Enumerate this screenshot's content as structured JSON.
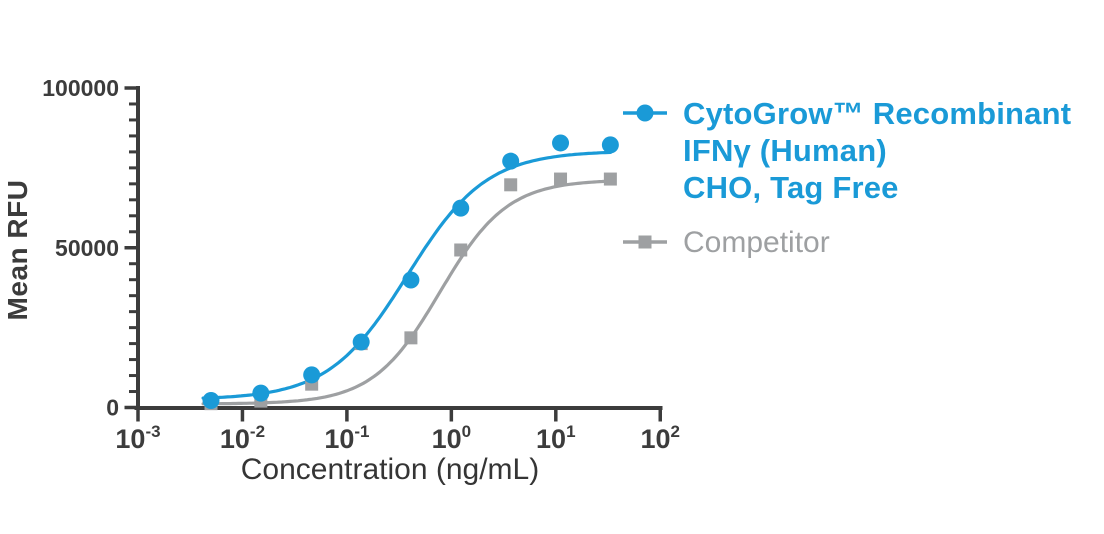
{
  "figure": {
    "background": "#FFFFFF"
  },
  "chart_data": {
    "type": "line",
    "title": "",
    "xlabel": "Concentration (ng/mL)",
    "ylabel": "Mean RFU",
    "x_scale": "log10",
    "x_tick_base": "10",
    "x_tick_exponents": [
      -3,
      -2,
      -1,
      0,
      1,
      2
    ],
    "y_range": [
      0,
      100000
    ],
    "y_major_ticks": [
      100000,
      50000,
      0
    ],
    "y_minor_step": 5000,
    "grid": "off",
    "legend_position": "right",
    "axis_color": "#3C3C3C",
    "concentrations_ng_ml": [
      0.005,
      0.015,
      0.046,
      0.137,
      0.41,
      1.23,
      3.7,
      11.1,
      33.3
    ],
    "series": [
      {
        "name": "cytogrow",
        "label_lines": [
          "CytoGrow™ Recombinant",
          "IFNγ (Human)",
          "CHO, Tag Free"
        ],
        "marker": "circle",
        "color": "#1A9AD7",
        "values": [
          2200,
          4500,
          10200,
          20500,
          39900,
          62400,
          77100,
          82800,
          82200
        ],
        "fit_curve": {
          "bottom": 2500,
          "top": 80300,
          "ec50": 0.38,
          "hill": 1.15
        }
      },
      {
        "name": "competitor",
        "label_lines": [
          "Competitor"
        ],
        "marker": "square",
        "color": "#9EA0A2",
        "values": [
          1200,
          2000,
          7300,
          20000,
          21800,
          49300,
          69700,
          71500,
          71500
        ],
        "fit_curve": {
          "bottom": 1100,
          "top": 71300,
          "ec50": 0.78,
          "hill": 1.35
        }
      }
    ],
    "curve_x_range": [
      0.0042,
      33.3
    ]
  }
}
